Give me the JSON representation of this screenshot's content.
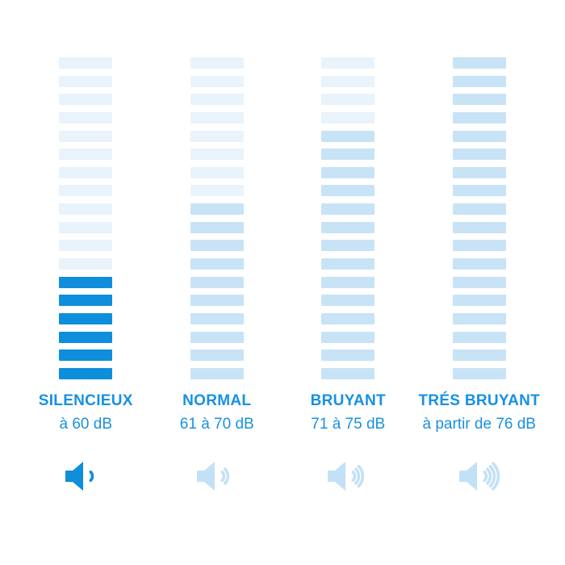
{
  "page": {
    "background": "#ffffff"
  },
  "colors": {
    "inactive_segment": "#E9F3FB",
    "medium_segment": "#C8E3F6",
    "active_segment": "#0E8EDB",
    "label_text": "#1691E3",
    "range_text": "#1A90E0",
    "icon_light": "#C3E1F6",
    "icon_dark": "#0E8EDB"
  },
  "chart_data": {
    "type": "bar",
    "subtype": "segmented-vertical-level-meter",
    "title": "",
    "xlabel": "",
    "ylabel": "",
    "segments_per_column": 18,
    "ylim": [
      0,
      18
    ],
    "grid": false,
    "legend": false,
    "categories": [
      "SILENCIEUX",
      "NORMAL",
      "BRUYANT",
      "TRÉS BRUYANT"
    ],
    "inactive_color": "#E9F3FB",
    "columns": [
      {
        "label": "SILENCIEUX",
        "range_label": "à 60 dB",
        "active_segments": 6,
        "active_color": "#0E8EDB",
        "speaker_waves": 1,
        "icon": "speaker-volume-low-icon",
        "icon_color": "#0E8EDB"
      },
      {
        "label": "NORMAL",
        "range_label": "61 à 70 dB",
        "active_segments": 10,
        "active_color": "#C8E3F6",
        "speaker_waves": 2,
        "icon": "speaker-volume-medium-icon",
        "icon_color": "#C3E1F6"
      },
      {
        "label": "BRUYANT",
        "range_label": "71 à 75 dB",
        "active_segments": 14,
        "active_color": "#C8E3F6",
        "speaker_waves": 3,
        "icon": "speaker-volume-high-icon",
        "icon_color": "#C3E1F6"
      },
      {
        "label": "TRÉS BRUYANT",
        "range_label": "à partir de 76 dB",
        "active_segments": 18,
        "active_color": "#C8E3F6",
        "speaker_waves": 4,
        "icon": "speaker-volume-max-icon",
        "icon_color": "#C3E1F6"
      }
    ]
  }
}
